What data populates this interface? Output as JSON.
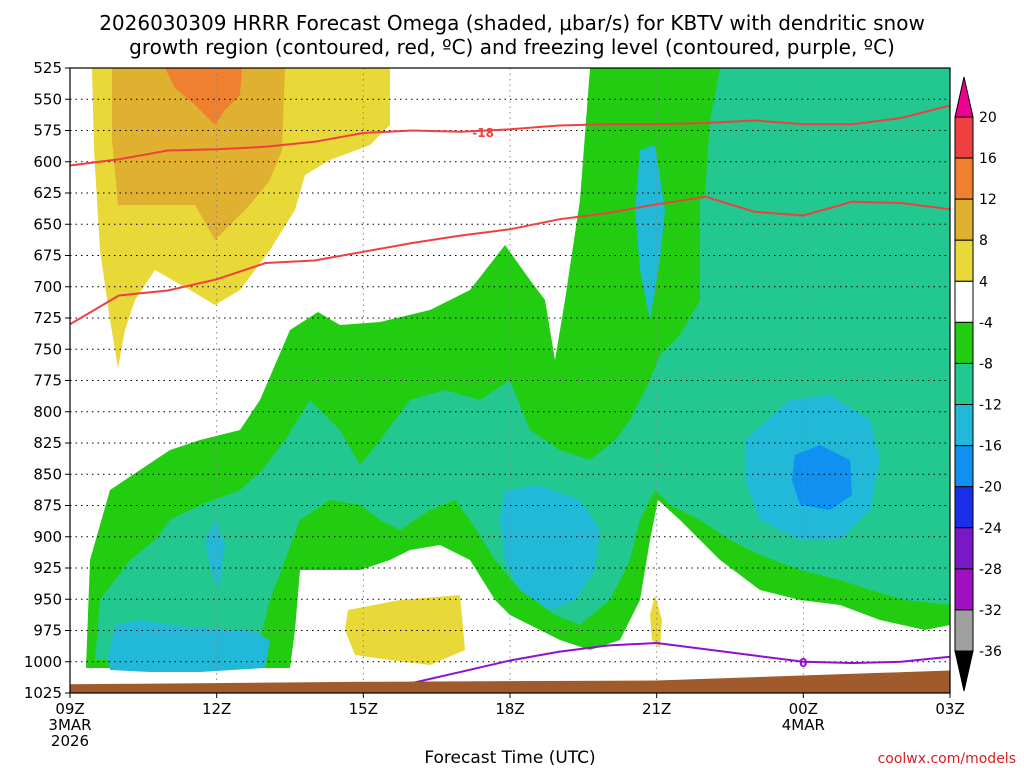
{
  "title": {
    "line1": "2026030309 HRRR Forecast Omega (shaded, μbar/s) for KBTV with dendritic snow",
    "line2": "growth region (contoured, red, ºC) and freezing level (contoured, purple, ºC)"
  },
  "credit": "coolwx.com/models",
  "chart_data": {
    "type": "heatmap",
    "xlabel": "Forecast Time (UTC)",
    "ylabel": "",
    "x_ticks": [
      {
        "label": "09Z",
        "sub": [
          "3MAR",
          "2026"
        ],
        "hour": 0
      },
      {
        "label": "12Z",
        "sub": [],
        "hour": 3
      },
      {
        "label": "15Z",
        "sub": [],
        "hour": 6
      },
      {
        "label": "18Z",
        "sub": [],
        "hour": 9
      },
      {
        "label": "21Z",
        "sub": [],
        "hour": 12
      },
      {
        "label": "00Z",
        "sub": [
          "4MAR"
        ],
        "hour": 15
      },
      {
        "label": "03Z",
        "sub": [],
        "hour": 18
      }
    ],
    "xlim_hours": [
      0,
      18
    ],
    "y_levels": [
      525,
      550,
      575,
      600,
      625,
      650,
      675,
      700,
      725,
      750,
      775,
      800,
      825,
      850,
      875,
      900,
      925,
      950,
      975,
      1000,
      1025
    ],
    "ylim": [
      525,
      1025
    ],
    "colorbar": {
      "levels": [
        20,
        16,
        12,
        8,
        4,
        -4,
        -8,
        -12,
        -16,
        -20,
        -24,
        -28,
        -32,
        -36
      ],
      "colors": [
        "#ee0090",
        "#ee4040",
        "#ee8030",
        "#e0b030",
        "#e8d838",
        "#ffffff",
        "#22cc11",
        "#22c890",
        "#22b8d8",
        "#1090f0",
        "#1a30e8",
        "#7a18c8",
        "#a010c0",
        "#a0a0a0",
        "#000000"
      ]
    },
    "contours": [
      {
        "name": "dgz_warm",
        "value": -12,
        "color": "#ee4040",
        "points": [
          [
            0,
            730
          ],
          [
            1,
            707
          ],
          [
            2,
            703
          ],
          [
            3,
            694
          ],
          [
            4,
            681
          ],
          [
            5,
            679
          ],
          [
            6,
            672
          ],
          [
            7,
            665
          ],
          [
            8,
            659
          ],
          [
            9,
            654
          ],
          [
            10,
            646
          ],
          [
            11,
            641
          ],
          [
            12,
            634
          ],
          [
            13,
            628
          ],
          [
            14,
            640
          ],
          [
            15,
            643
          ],
          [
            16,
            632
          ],
          [
            17,
            633
          ],
          [
            18,
            638
          ]
        ]
      },
      {
        "name": "dgz_cold",
        "value": -18,
        "color": "#ee4040",
        "label": "-18",
        "points": [
          [
            0,
            603
          ],
          [
            1,
            598
          ],
          [
            2,
            591
          ],
          [
            3,
            590
          ],
          [
            4,
            588
          ],
          [
            5,
            584
          ],
          [
            6,
            577
          ],
          [
            7,
            575
          ],
          [
            8,
            576
          ],
          [
            9,
            574
          ],
          [
            10,
            571
          ],
          [
            11,
            570
          ],
          [
            12,
            570
          ],
          [
            13,
            569
          ],
          [
            14,
            567
          ],
          [
            15,
            570
          ],
          [
            16,
            570
          ],
          [
            17,
            565
          ],
          [
            18,
            555
          ]
        ]
      },
      {
        "name": "freezing_level",
        "value": 0,
        "color": "#9010d0",
        "label": "0",
        "points": [
          [
            6,
            1025
          ],
          [
            7,
            1017
          ],
          [
            8,
            1008
          ],
          [
            9,
            999
          ],
          [
            10,
            992
          ],
          [
            11,
            987
          ],
          [
            12,
            985
          ],
          [
            13,
            990
          ],
          [
            14,
            995
          ],
          [
            15,
            1000
          ],
          [
            16,
            1001
          ],
          [
            17,
            1000
          ],
          [
            18,
            996
          ]
        ]
      }
    ],
    "ground": {
      "color": "#a05a2c",
      "points": [
        [
          0,
          1018
        ],
        [
          6,
          1016
        ],
        [
          12,
          1015
        ],
        [
          18,
          1007
        ]
      ]
    }
  }
}
